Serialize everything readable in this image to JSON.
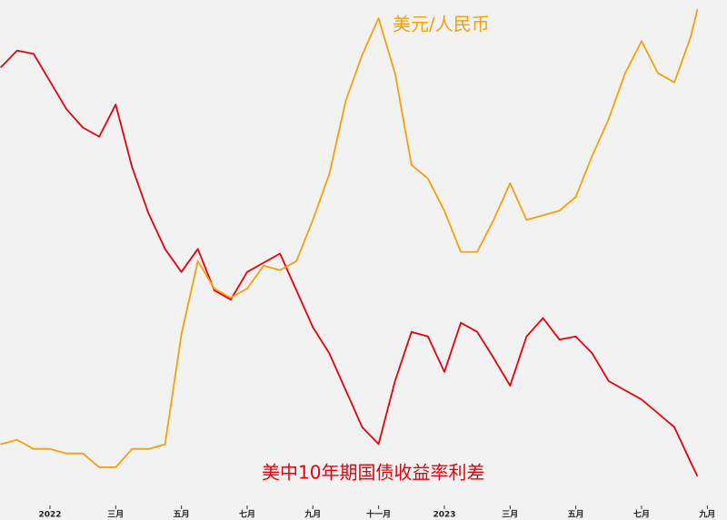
{
  "chart_data": {
    "type": "line",
    "x": [
      -1.5,
      -1,
      -0.5,
      0,
      0.5,
      1,
      1.5,
      2,
      2.5,
      3,
      3.5,
      4,
      4.5,
      5,
      5.5,
      6,
      6.5,
      7,
      7.5,
      8,
      8.5,
      9,
      9.5,
      10,
      10.5,
      11,
      11.5,
      12,
      12.5,
      13,
      13.5,
      14,
      14.5,
      15,
      15.5,
      16,
      16.5,
      17,
      17.5,
      18,
      18.5,
      19,
      19.5,
      19.7
    ],
    "xlim": [
      -1.52,
      20.6
    ],
    "xticks": [
      {
        "value": 0,
        "label": "2022"
      },
      {
        "value": 2,
        "label": "三月"
      },
      {
        "value": 4,
        "label": "五月"
      },
      {
        "value": 6,
        "label": "七月"
      },
      {
        "value": 8,
        "label": "九月"
      },
      {
        "value": 10,
        "label": "十一月"
      },
      {
        "value": 12,
        "label": "2023"
      },
      {
        "value": 14,
        "label": "三月"
      },
      {
        "value": 16,
        "label": "五月"
      },
      {
        "value": 18,
        "label": "七月"
      },
      {
        "value": 20,
        "label": "九月"
      }
    ],
    "ylim": [
      1.7,
      -1.4
    ],
    "y2lim": [
      6.28,
      7.32
    ],
    "series": [
      {
        "name": "美中10年期国债收益率利差",
        "color": "#e8000b",
        "values": [
          -0.99,
          -1.1,
          -1.08,
          -0.9,
          -0.72,
          -0.6,
          -0.54,
          -0.75,
          -0.34,
          -0.04,
          0.19,
          0.34,
          0.19,
          0.46,
          0.52,
          0.34,
          0.28,
          0.22,
          0.46,
          0.7,
          0.87,
          1.11,
          1.35,
          1.46,
          1.05,
          0.73,
          0.76,
          0.99,
          0.67,
          0.73,
          0.9,
          1.08,
          0.76,
          0.64,
          0.78,
          0.76,
          0.87,
          1.05,
          1.11,
          1.17,
          1.26,
          1.35,
          1.58,
          1.67
        ]
      },
      {
        "name": "美元/人民币",
        "color": "#f5a00a",
        "axis": "y2",
        "values": [
          6.36,
          6.37,
          6.35,
          6.35,
          6.34,
          6.34,
          6.31,
          6.31,
          6.35,
          6.35,
          6.36,
          6.6,
          6.76,
          6.7,
          6.68,
          6.7,
          6.75,
          6.74,
          6.76,
          6.85,
          6.95,
          7.11,
          7.21,
          7.29,
          7.17,
          6.97,
          6.94,
          6.87,
          6.78,
          6.78,
          6.85,
          6.93,
          6.85,
          6.86,
          6.87,
          6.9,
          6.99,
          7.07,
          7.17,
          7.24,
          7.17,
          7.15,
          7.25,
          7.31
        ]
      }
    ]
  }
}
